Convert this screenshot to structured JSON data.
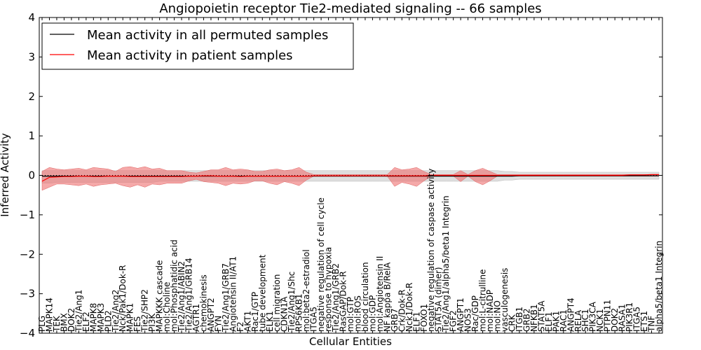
{
  "chart_data": {
    "type": "line",
    "title": "Angiopoietin receptor Tie2-mediated signaling -- 66 samples",
    "xlabel": "Cellular Entities",
    "ylabel": "Inferred Activity",
    "ylim": [
      -4,
      4
    ],
    "yticks": [
      -4,
      -3,
      -2,
      -1,
      0,
      1,
      2,
      3,
      4
    ],
    "ytick_labels": [
      "−4",
      "−3",
      "−2",
      "−1",
      "0",
      "1",
      "2",
      "3",
      "4"
    ],
    "legend": {
      "placement": "top-left",
      "entries": [
        {
          "label": "Mean activity in all permuted samples",
          "color": "#000000"
        },
        {
          "label": "Mean activity in patient samples",
          "color": "#ff0000"
        }
      ]
    },
    "reference_line": {
      "y": 0,
      "style": "dotted"
    },
    "categories": [
      "PLG",
      "MAPK14",
      "TEK",
      "BMX",
      "DOK2",
      "Tie2/Ang1",
      "ELF2",
      "MAPK8",
      "MAPK3",
      "PLD2",
      "Tie2/Ang2",
      "Nck/Pak1/Dok-R",
      "MAPK1",
      "FES",
      "Tie2/SHP2",
      "PI3K",
      "MAPKKK cascade",
      "mol:Choline",
      "mol:Phosphatidic acid",
      "Tie2/Ang1/ABIN2",
      "Tie2/Ang1/GRB14",
      "AGTR1",
      "chemokinesis",
      "ANGPT2",
      "FYN",
      "Tie2/Ang1/GRB7",
      "Angiotensin II/AT1",
      "F2",
      "AKT1",
      "Rac1/GTP",
      "tube development",
      "ELK1",
      "cell migration",
      "CDKN1A",
      "Tie2/Ang1/Shc",
      "RPS6KB1",
      "mol:beta2-estradiol",
      "ITGA5",
      "negative regulation of cell cycle",
      "response to hypoxia",
      "Tie2/Ang1/GRB2",
      "RasGAP/Dok-R",
      "mol:GTP",
      "mol:ROS",
      "blood circulation",
      "mol:GDP",
      "mol:Angiotensin II",
      "NF kappa B/RelA",
      "GRB7",
      "Crk/Dok-R",
      "Nck1/Dok-R",
      "ELF1",
      "FOXO1",
      "negative regulation of caspase activity",
      "STAT5A (dimer)",
      "Tie2/Ang1/alpha5/beta1 Integrin",
      "FGF2",
      "ANGPT1",
      "NOS3",
      "Rac/GDP",
      "mol:L-citrulline",
      "mol:NADP",
      "mol:NO",
      "vasculogenesis",
      "CRK",
      "ITGB1",
      "GRB2",
      "NFKB1",
      "STAT5A",
      "ELF1",
      "PAK1",
      "RAC1",
      "ANGPT4",
      "RELA",
      "SHC1",
      "PIK3CA",
      "NCK1",
      "PTPN11",
      "DOK2",
      "RASA1",
      "PIK3R1",
      "ITGA5",
      "ETS1",
      "TNF",
      "alpha5/beta1 Integrin"
    ],
    "series": [
      {
        "name": "Mean activity in all permuted samples",
        "color": "#000000",
        "values": [
          -0.02,
          -0.02,
          -0.02,
          -0.02,
          -0.02,
          -0.02,
          -0.02,
          -0.02,
          -0.02,
          -0.02,
          -0.02,
          -0.02,
          -0.02,
          -0.02,
          -0.02,
          -0.02,
          -0.02,
          -0.02,
          -0.02,
          -0.02,
          -0.02,
          -0.02,
          -0.02,
          -0.02,
          -0.02,
          -0.02,
          -0.02,
          -0.02,
          -0.02,
          -0.02,
          -0.02,
          -0.02,
          -0.02,
          -0.02,
          -0.02,
          -0.02,
          -0.02,
          -0.02,
          -0.02,
          -0.02,
          -0.02,
          -0.02,
          -0.02,
          -0.02,
          -0.02,
          -0.02,
          -0.02,
          -0.02,
          -0.02,
          -0.02,
          -0.02,
          -0.02,
          -0.02,
          -0.02,
          -0.02,
          -0.02,
          -0.02,
          -0.02,
          -0.02,
          -0.02,
          -0.02,
          -0.02,
          -0.02,
          -0.02,
          -0.02,
          -0.01,
          -0.01,
          -0.01,
          -0.01,
          -0.01,
          -0.01,
          -0.01,
          -0.01,
          -0.01,
          -0.01,
          -0.01,
          -0.01,
          -0.01,
          -0.01,
          -0.01,
          -0.01,
          -0.01,
          -0.01,
          -0.01,
          -0.01
        ],
        "band_lower": [
          -0.2,
          -0.2,
          -0.18,
          -0.18,
          -0.18,
          -0.18,
          -0.18,
          -0.18,
          -0.18,
          -0.18,
          -0.18,
          -0.18,
          -0.18,
          -0.18,
          -0.18,
          -0.18,
          -0.15,
          -0.15,
          -0.15,
          -0.15,
          -0.15,
          -0.15,
          -0.15,
          -0.15,
          -0.15,
          -0.15,
          -0.15,
          -0.15,
          -0.15,
          -0.15,
          -0.15,
          -0.15,
          -0.15,
          -0.15,
          -0.15,
          -0.15,
          -0.15,
          -0.15,
          -0.15,
          -0.15,
          -0.15,
          -0.15,
          -0.15,
          -0.15,
          -0.15,
          -0.15,
          -0.15,
          -0.15,
          -0.15,
          -0.15,
          -0.15,
          -0.15,
          -0.15,
          -0.15,
          -0.15,
          -0.15,
          -0.15,
          -0.15,
          -0.15,
          -0.15,
          -0.15,
          -0.15,
          -0.15,
          -0.12,
          -0.12,
          -0.1,
          -0.1,
          -0.1,
          -0.1,
          -0.1,
          -0.1,
          -0.1,
          -0.1,
          -0.1,
          -0.1,
          -0.1,
          -0.1,
          -0.1,
          -0.1,
          -0.1,
          -0.1,
          -0.1,
          -0.1,
          -0.1,
          -0.1
        ],
        "band_upper": [
          0.12,
          0.12,
          0.12,
          0.12,
          0.12,
          0.12,
          0.12,
          0.12,
          0.12,
          0.12,
          0.12,
          0.12,
          0.12,
          0.12,
          0.12,
          0.12,
          0.12,
          0.12,
          0.12,
          0.12,
          0.12,
          0.12,
          0.12,
          0.12,
          0.12,
          0.12,
          0.12,
          0.12,
          0.12,
          0.12,
          0.12,
          0.12,
          0.12,
          0.12,
          0.12,
          0.12,
          0.12,
          0.12,
          0.12,
          0.12,
          0.12,
          0.12,
          0.12,
          0.12,
          0.12,
          0.12,
          0.12,
          0.12,
          0.12,
          0.12,
          0.12,
          0.12,
          0.12,
          0.12,
          0.12,
          0.12,
          0.12,
          0.12,
          0.12,
          0.12,
          0.12,
          0.12,
          0.12,
          0.1,
          0.1,
          0.08,
          0.08,
          0.08,
          0.08,
          0.08,
          0.08,
          0.08,
          0.08,
          0.08,
          0.08,
          0.08,
          0.08,
          0.08,
          0.08,
          0.08,
          0.08,
          0.08,
          0.08,
          0.08,
          0.08
        ]
      },
      {
        "name": "Mean activity in patient samples",
        "color": "#ff0000",
        "values": [
          -0.15,
          -0.05,
          -0.04,
          -0.03,
          -0.03,
          -0.02,
          -0.02,
          -0.03,
          -0.03,
          -0.02,
          -0.02,
          -0.02,
          -0.03,
          -0.03,
          -0.03,
          -0.03,
          -0.03,
          -0.03,
          -0.03,
          -0.03,
          -0.02,
          -0.02,
          -0.01,
          -0.01,
          -0.02,
          -0.02,
          -0.02,
          -0.03,
          -0.02,
          -0.02,
          -0.02,
          -0.02,
          -0.02,
          -0.02,
          -0.02,
          -0.02,
          -0.02,
          -0.01,
          -0.01,
          -0.01,
          -0.01,
          -0.01,
          -0.01,
          -0.01,
          -0.01,
          -0.01,
          -0.01,
          -0.01,
          -0.01,
          -0.01,
          -0.01,
          -0.01,
          -0.01,
          0.0,
          0.0,
          0.0,
          0.0,
          0.0,
          0.0,
          0.0,
          0.0,
          0.0,
          0.0,
          0.0,
          0.0,
          0.0,
          0.0,
          0.0,
          0.0,
          0.0,
          0.0,
          0.0,
          0.0,
          0.0,
          0.0,
          0.0,
          0.0,
          0.0,
          0.0,
          0.0,
          0.01,
          0.01,
          0.01,
          0.02,
          0.02
        ],
        "band_lower": [
          -0.38,
          -0.3,
          -0.22,
          -0.22,
          -0.24,
          -0.26,
          -0.22,
          -0.28,
          -0.24,
          -0.22,
          -0.2,
          -0.26,
          -0.3,
          -0.24,
          -0.3,
          -0.22,
          -0.24,
          -0.2,
          -0.2,
          -0.2,
          -0.14,
          -0.1,
          -0.16,
          -0.18,
          -0.2,
          -0.26,
          -0.2,
          -0.22,
          -0.2,
          -0.14,
          -0.14,
          -0.2,
          -0.24,
          -0.16,
          -0.2,
          -0.26,
          -0.12,
          -0.02,
          -0.02,
          -0.02,
          -0.02,
          -0.02,
          -0.02,
          -0.02,
          -0.02,
          -0.02,
          -0.02,
          -0.02,
          -0.28,
          -0.18,
          -0.22,
          -0.28,
          -0.14,
          -0.02,
          -0.02,
          -0.02,
          -0.02,
          -0.16,
          -0.02,
          -0.16,
          -0.24,
          -0.14,
          -0.02,
          -0.02,
          -0.02,
          -0.02,
          -0.02,
          -0.02,
          -0.02,
          -0.02,
          -0.02,
          -0.02,
          -0.02,
          -0.02,
          -0.02,
          -0.02,
          -0.02,
          -0.02,
          -0.02,
          -0.02,
          -0.02,
          -0.02,
          -0.02,
          -0.02,
          -0.02
        ],
        "band_upper": [
          0.1,
          0.2,
          0.16,
          0.14,
          0.16,
          0.18,
          0.14,
          0.2,
          0.18,
          0.16,
          0.1,
          0.2,
          0.22,
          0.18,
          0.22,
          0.16,
          0.18,
          0.12,
          0.12,
          0.12,
          0.08,
          0.06,
          0.1,
          0.14,
          0.14,
          0.2,
          0.14,
          0.16,
          0.14,
          0.1,
          0.1,
          0.14,
          0.16,
          0.12,
          0.14,
          0.2,
          0.08,
          0.02,
          0.02,
          0.02,
          0.02,
          0.02,
          0.02,
          0.02,
          0.02,
          0.02,
          0.02,
          0.02,
          0.2,
          0.14,
          0.16,
          0.2,
          0.1,
          0.02,
          0.02,
          0.02,
          0.02,
          0.12,
          0.02,
          0.12,
          0.18,
          0.1,
          0.02,
          0.02,
          0.02,
          0.02,
          0.02,
          0.02,
          0.02,
          0.02,
          0.02,
          0.02,
          0.02,
          0.02,
          0.02,
          0.02,
          0.02,
          0.02,
          0.02,
          0.02,
          0.02,
          0.02,
          0.02,
          0.02,
          0.02
        ]
      }
    ]
  }
}
